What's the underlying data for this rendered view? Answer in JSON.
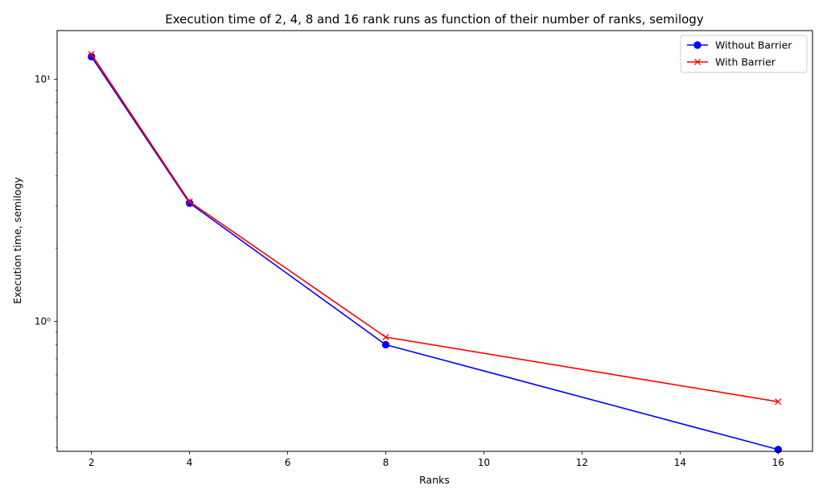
{
  "chart_data": {
    "type": "line",
    "title": "Execution time of 2, 4, 8 and 16 rank runs as function of their number of ranks, semilogy",
    "xlabel": "Ranks",
    "ylabel": "Execution time, semilogy",
    "yscale": "log",
    "xlim": [
      1.3,
      16.7
    ],
    "ylim": [
      0.29,
      15.9
    ],
    "x_ticks": [
      2,
      4,
      6,
      8,
      10,
      12,
      14,
      16
    ],
    "y_ticks": [
      {
        "value": 1,
        "label": "10⁰"
      },
      {
        "value": 10,
        "label": "10¹"
      }
    ],
    "x": [
      2,
      4,
      8,
      16
    ],
    "series": [
      {
        "name": "Without Barrier",
        "color": "#0000ff",
        "marker": "circle",
        "values": [
          12.4,
          3.08,
          0.8,
          0.295
        ]
      },
      {
        "name": "With Barrier",
        "color": "#ff0000",
        "marker": "x",
        "values": [
          12.7,
          3.12,
          0.86,
          0.465
        ]
      }
    ],
    "legend_position": "top-right",
    "grid": false
  }
}
